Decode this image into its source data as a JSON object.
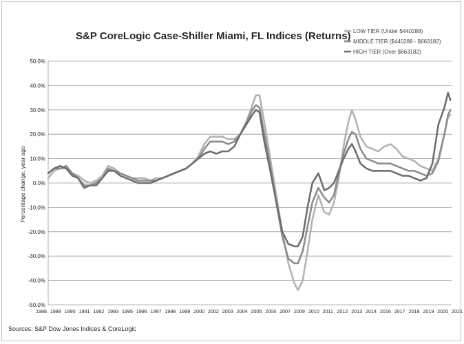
{
  "chart_data": {
    "type": "line",
    "title": "S&P CoreLogic Case-Shiller Miami, FL Indices (Returns)",
    "xlabel": "",
    "ylabel": "Percentage change, year ago",
    "source": "Sources: S&P Dow Jones Indices & CoreLogic",
    "xlim": [
      1988.0,
      2021.6
    ],
    "ylim": [
      -50,
      50
    ],
    "y_ticks": [
      -50,
      -40,
      -30,
      -20,
      -10,
      0,
      10,
      20,
      30,
      40,
      50
    ],
    "y_tick_labels": [
      "-50.0%",
      "-40.0%",
      "-30.0%",
      "-20.0%",
      "-10.0%",
      "0.0%",
      "10.0%",
      "20.0%",
      "30.0%",
      "40.0%",
      "50.0%"
    ],
    "x_tick_labels": [
      "1988",
      "1989",
      "1990",
      "1991",
      "1992",
      "1993",
      "1995",
      "1996",
      "1997",
      "1998",
      "1999",
      "2000",
      "2002",
      "2003",
      "2004",
      "2005",
      "2006",
      "2007",
      "2009",
      "2010",
      "2011",
      "2012",
      "2013",
      "2014",
      "2016",
      "2017",
      "2018",
      "2019",
      "2020",
      "2021"
    ],
    "grid": true,
    "legend": "top-right",
    "series": [
      {
        "name": "LOW TIER (Under $440288)",
        "color": "#b3b3b3",
        "points": [
          [
            1988.0,
            2
          ],
          [
            1988.5,
            5
          ],
          [
            1989.0,
            6
          ],
          [
            1989.5,
            6
          ],
          [
            1990.0,
            4
          ],
          [
            1990.5,
            3
          ],
          [
            1991.0,
            1
          ],
          [
            1991.5,
            0
          ],
          [
            1992.0,
            1
          ],
          [
            1992.5,
            3
          ],
          [
            1993.0,
            7
          ],
          [
            1993.5,
            6
          ],
          [
            1994.0,
            4
          ],
          [
            1994.5,
            3
          ],
          [
            1995.0,
            2
          ],
          [
            1995.5,
            2
          ],
          [
            1996.0,
            2
          ],
          [
            1996.5,
            1
          ],
          [
            1997.0,
            2
          ],
          [
            1997.5,
            2
          ],
          [
            1998.0,
            3
          ],
          [
            1998.5,
            4
          ],
          [
            1999.0,
            5
          ],
          [
            1999.5,
            6
          ],
          [
            2000.0,
            8
          ],
          [
            2000.5,
            11
          ],
          [
            2001.0,
            16
          ],
          [
            2001.5,
            19
          ],
          [
            2002.0,
            19
          ],
          [
            2002.5,
            19
          ],
          [
            2003.0,
            18
          ],
          [
            2003.5,
            18
          ],
          [
            2004.0,
            20
          ],
          [
            2004.5,
            25
          ],
          [
            2005.0,
            32
          ],
          [
            2005.3,
            36
          ],
          [
            2005.6,
            36
          ],
          [
            2006.0,
            25
          ],
          [
            2006.5,
            10
          ],
          [
            2007.0,
            -5
          ],
          [
            2007.5,
            -20
          ],
          [
            2008.0,
            -33
          ],
          [
            2008.5,
            -41
          ],
          [
            2008.8,
            -44
          ],
          [
            2009.2,
            -40
          ],
          [
            2009.6,
            -28
          ],
          [
            2010.0,
            -15
          ],
          [
            2010.5,
            -5
          ],
          [
            2011.0,
            -12
          ],
          [
            2011.4,
            -13
          ],
          [
            2011.8,
            -8
          ],
          [
            2012.2,
            2
          ],
          [
            2012.6,
            15
          ],
          [
            2013.0,
            25
          ],
          [
            2013.3,
            30
          ],
          [
            2013.6,
            26
          ],
          [
            2014.0,
            19
          ],
          [
            2014.5,
            15
          ],
          [
            2015.0,
            14
          ],
          [
            2015.5,
            13
          ],
          [
            2016.0,
            15
          ],
          [
            2016.5,
            16
          ],
          [
            2017.0,
            14
          ],
          [
            2017.5,
            11
          ],
          [
            2018.0,
            10
          ],
          [
            2018.5,
            9
          ],
          [
            2019.0,
            7
          ],
          [
            2019.5,
            6
          ],
          [
            2020.0,
            5
          ],
          [
            2020.5,
            10
          ],
          [
            2021.0,
            20
          ],
          [
            2021.3,
            27
          ],
          [
            2021.5,
            28
          ]
        ]
      },
      {
        "name": "MIDDLE TIER ($440288 - $663182)",
        "color": "#8c8c8c",
        "points": [
          [
            1988.0,
            4
          ],
          [
            1988.5,
            6
          ],
          [
            1989.0,
            6
          ],
          [
            1989.5,
            7
          ],
          [
            1990.0,
            4
          ],
          [
            1990.5,
            2
          ],
          [
            1991.0,
            -1
          ],
          [
            1991.5,
            -1
          ],
          [
            1992.0,
            0
          ],
          [
            1992.5,
            2
          ],
          [
            1993.0,
            6
          ],
          [
            1993.5,
            5
          ],
          [
            1994.0,
            4
          ],
          [
            1994.5,
            3
          ],
          [
            1995.0,
            2
          ],
          [
            1995.5,
            1
          ],
          [
            1996.0,
            1
          ],
          [
            1996.5,
            1
          ],
          [
            1997.0,
            1
          ],
          [
            1997.5,
            2
          ],
          [
            1998.0,
            3
          ],
          [
            1998.5,
            4
          ],
          [
            1999.0,
            5
          ],
          [
            1999.5,
            6
          ],
          [
            2000.0,
            8
          ],
          [
            2000.5,
            10
          ],
          [
            2001.0,
            14
          ],
          [
            2001.5,
            17
          ],
          [
            2002.0,
            17
          ],
          [
            2002.5,
            17
          ],
          [
            2003.0,
            16
          ],
          [
            2003.5,
            17
          ],
          [
            2004.0,
            20
          ],
          [
            2004.5,
            25
          ],
          [
            2005.0,
            30
          ],
          [
            2005.3,
            32
          ],
          [
            2005.6,
            31
          ],
          [
            2006.0,
            20
          ],
          [
            2006.5,
            7
          ],
          [
            2007.0,
            -8
          ],
          [
            2007.5,
            -22
          ],
          [
            2008.0,
            -31
          ],
          [
            2008.5,
            -33
          ],
          [
            2008.8,
            -33
          ],
          [
            2009.2,
            -28
          ],
          [
            2009.6,
            -18
          ],
          [
            2010.0,
            -8
          ],
          [
            2010.5,
            -2
          ],
          [
            2011.0,
            -6
          ],
          [
            2011.4,
            -8
          ],
          [
            2011.8,
            -5
          ],
          [
            2012.2,
            4
          ],
          [
            2012.6,
            12
          ],
          [
            2013.0,
            18
          ],
          [
            2013.3,
            21
          ],
          [
            2013.6,
            20
          ],
          [
            2014.0,
            14
          ],
          [
            2014.5,
            10
          ],
          [
            2015.0,
            9
          ],
          [
            2015.5,
            8
          ],
          [
            2016.0,
            8
          ],
          [
            2016.5,
            8
          ],
          [
            2017.0,
            7
          ],
          [
            2017.5,
            6
          ],
          [
            2018.0,
            5
          ],
          [
            2018.5,
            5
          ],
          [
            2019.0,
            4
          ],
          [
            2019.5,
            3
          ],
          [
            2020.0,
            4
          ],
          [
            2020.5,
            9
          ],
          [
            2021.0,
            20
          ],
          [
            2021.3,
            28
          ],
          [
            2021.5,
            30
          ]
        ]
      },
      {
        "name": "HIGH TIER (Over $663182)",
        "color": "#6e6e6e",
        "points": [
          [
            1988.0,
            4
          ],
          [
            1988.5,
            6
          ],
          [
            1989.0,
            7
          ],
          [
            1989.5,
            6
          ],
          [
            1990.0,
            3
          ],
          [
            1990.5,
            2
          ],
          [
            1991.0,
            -2
          ],
          [
            1991.5,
            -1
          ],
          [
            1992.0,
            -1
          ],
          [
            1992.5,
            2
          ],
          [
            1993.0,
            5
          ],
          [
            1993.5,
            5
          ],
          [
            1994.0,
            3
          ],
          [
            1994.5,
            2
          ],
          [
            1995.0,
            1
          ],
          [
            1995.5,
            0
          ],
          [
            1996.0,
            0
          ],
          [
            1996.5,
            0
          ],
          [
            1997.0,
            1
          ],
          [
            1997.5,
            2
          ],
          [
            1998.0,
            3
          ],
          [
            1998.5,
            4
          ],
          [
            1999.0,
            5
          ],
          [
            1999.5,
            6
          ],
          [
            2000.0,
            8
          ],
          [
            2000.5,
            10
          ],
          [
            2001.0,
            12
          ],
          [
            2001.5,
            13
          ],
          [
            2002.0,
            12
          ],
          [
            2002.5,
            13
          ],
          [
            2003.0,
            13
          ],
          [
            2003.5,
            15
          ],
          [
            2004.0,
            20
          ],
          [
            2004.5,
            24
          ],
          [
            2005.0,
            28
          ],
          [
            2005.3,
            30
          ],
          [
            2005.6,
            29
          ],
          [
            2006.0,
            17
          ],
          [
            2006.5,
            5
          ],
          [
            2007.0,
            -8
          ],
          [
            2007.5,
            -20
          ],
          [
            2008.0,
            -25
          ],
          [
            2008.5,
            -26
          ],
          [
            2008.8,
            -26
          ],
          [
            2009.2,
            -22
          ],
          [
            2009.6,
            -10
          ],
          [
            2010.0,
            0
          ],
          [
            2010.5,
            4
          ],
          [
            2011.0,
            -3
          ],
          [
            2011.4,
            -2
          ],
          [
            2011.8,
            0
          ],
          [
            2012.2,
            5
          ],
          [
            2012.6,
            10
          ],
          [
            2013.0,
            14
          ],
          [
            2013.3,
            16
          ],
          [
            2013.6,
            13
          ],
          [
            2014.0,
            8
          ],
          [
            2014.5,
            6
          ],
          [
            2015.0,
            5
          ],
          [
            2015.5,
            5
          ],
          [
            2016.0,
            5
          ],
          [
            2016.5,
            5
          ],
          [
            2017.0,
            4
          ],
          [
            2017.5,
            3
          ],
          [
            2018.0,
            3
          ],
          [
            2018.5,
            2
          ],
          [
            2019.0,
            1
          ],
          [
            2019.5,
            2
          ],
          [
            2020.0,
            8
          ],
          [
            2020.5,
            24
          ],
          [
            2021.0,
            31
          ],
          [
            2021.3,
            37
          ],
          [
            2021.5,
            34
          ]
        ]
      }
    ]
  }
}
